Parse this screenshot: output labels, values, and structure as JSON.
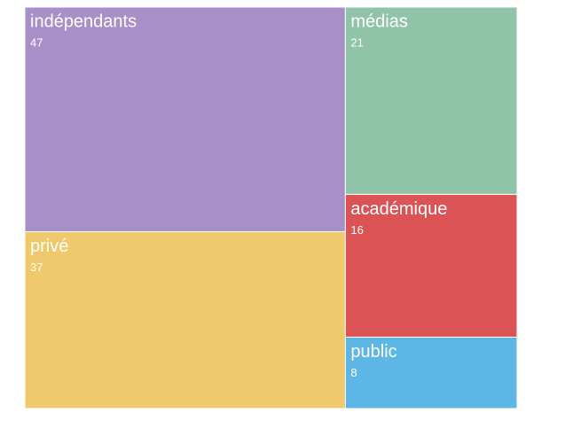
{
  "chart_data": {
    "type": "treemap",
    "categories": [
      "indépendants",
      "privé",
      "médias",
      "académique",
      "public"
    ],
    "values": [
      47,
      37,
      21,
      16,
      8
    ],
    "colors": [
      "#a98fc8",
      "#efc96b",
      "#8fc4a9",
      "#dc5356",
      "#5db6e6"
    ]
  }
}
